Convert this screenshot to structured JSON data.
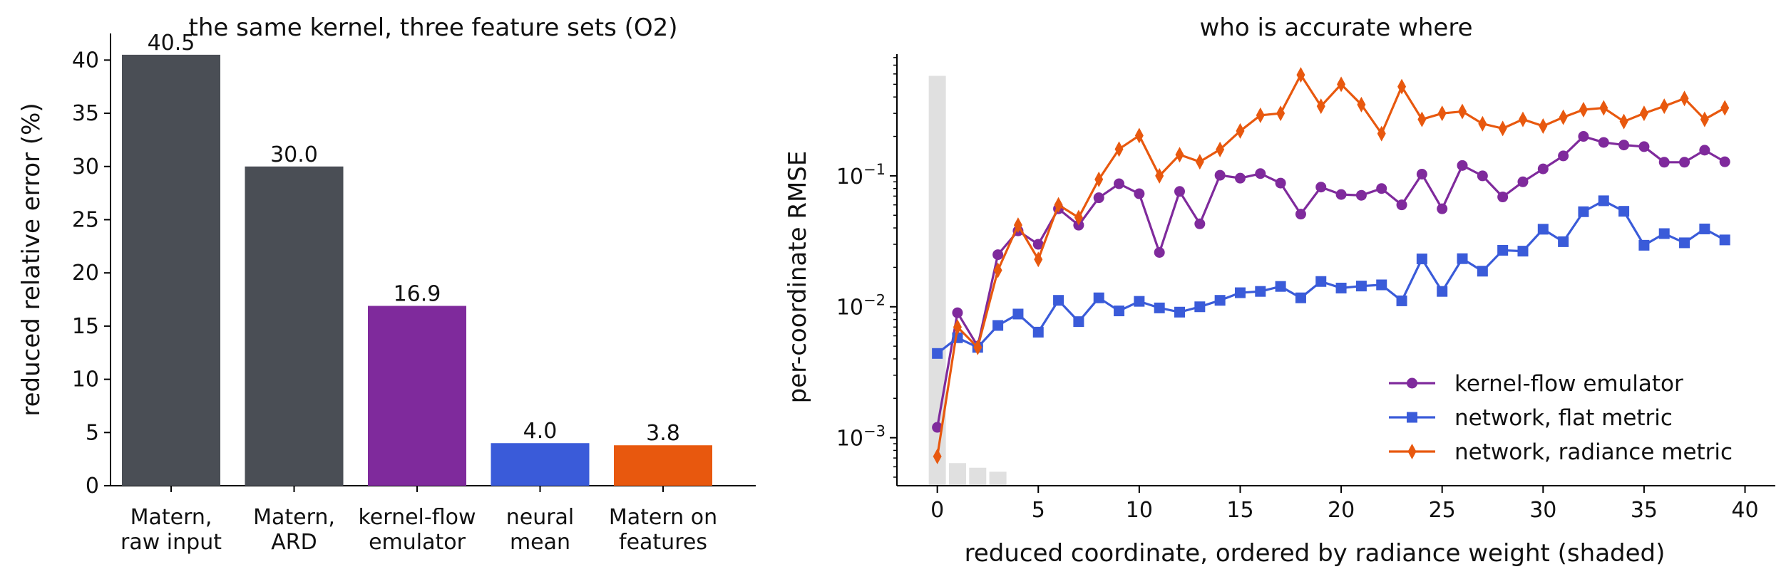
{
  "colors": {
    "dark_gray": "#4a4e55",
    "purple": "#7f2a9c",
    "blue": "#3a5bd9",
    "orange": "#e8580e",
    "shade": "#e0e0e0"
  },
  "chart_data": [
    {
      "type": "bar",
      "title": "the same kernel, three feature sets (O2)",
      "xlabel": "",
      "ylabel": "reduced relative error (%)",
      "ylim": [
        0,
        42.5
      ],
      "yticks": [
        0,
        5,
        10,
        15,
        20,
        25,
        30,
        35,
        40
      ],
      "categories": [
        [
          "Matern,",
          "raw input"
        ],
        [
          "Matern,",
          "ARD"
        ],
        [
          "kernel-flow",
          "emulator"
        ],
        [
          "neural",
          "mean"
        ],
        [
          "Matern on",
          "features"
        ]
      ],
      "values": [
        40.5,
        30.0,
        16.9,
        4.0,
        3.8
      ],
      "value_labels": [
        "40.5",
        "30.0",
        "16.9",
        "4.0",
        "3.8"
      ],
      "bar_colors": [
        "#4a4e55",
        "#4a4e55",
        "#7f2a9c",
        "#3a5bd9",
        "#e8580e"
      ]
    },
    {
      "type": "line",
      "title": "who is accurate where",
      "xlabel": "reduced coordinate, ordered by radiance weight (shaded)",
      "ylabel": "per-coordinate RMSE",
      "yscale": "log",
      "xlim": [
        -2,
        41.5
      ],
      "ylim": [
        0.00043,
        0.85
      ],
      "xticks": [
        0,
        5,
        10,
        15,
        20,
        25,
        30,
        35,
        40
      ],
      "yticks": [
        0.001,
        0.01,
        0.1
      ],
      "ytick_labels": [
        [
          "10",
          "−3"
        ],
        [
          "10",
          "−2"
        ],
        [
          "10",
          "−1"
        ]
      ],
      "legend_position": "lower-right",
      "x": [
        0,
        1,
        2,
        3,
        4,
        5,
        6,
        7,
        8,
        9,
        10,
        11,
        12,
        13,
        14,
        15,
        16,
        17,
        18,
        19,
        20,
        21,
        22,
        23,
        24,
        25,
        26,
        27,
        28,
        29,
        30,
        31,
        32,
        33,
        34,
        35,
        36,
        37,
        38,
        39
      ],
      "radiance_weight_shading": {
        "x": [
          0,
          1,
          2,
          3
        ],
        "values": [
          0.58,
          0.00064,
          0.00059,
          0.00055
        ]
      },
      "series": [
        {
          "name": "kernel-flow emulator",
          "color": "#7f2a9c",
          "marker": "circle",
          "values": [
            0.0012,
            0.009,
            0.005,
            0.025,
            0.038,
            0.03,
            0.056,
            0.042,
            0.068,
            0.087,
            0.073,
            0.026,
            0.076,
            0.043,
            0.101,
            0.096,
            0.104,
            0.088,
            0.051,
            0.082,
            0.072,
            0.071,
            0.08,
            0.06,
            0.103,
            0.056,
            0.12,
            0.1,
            0.069,
            0.09,
            0.113,
            0.142,
            0.2,
            0.18,
            0.172,
            0.167,
            0.127,
            0.127,
            0.157,
            0.128
          ]
        },
        {
          "name": "network, flat metric",
          "color": "#3a5bd9",
          "marker": "square",
          "values": [
            0.0044,
            0.0058,
            0.0049,
            0.0072,
            0.0088,
            0.0064,
            0.0112,
            0.0077,
            0.0117,
            0.0093,
            0.011,
            0.0098,
            0.0091,
            0.01,
            0.0112,
            0.0128,
            0.0131,
            0.0143,
            0.0117,
            0.0156,
            0.0139,
            0.0144,
            0.0147,
            0.0111,
            0.0232,
            0.0131,
            0.0233,
            0.0187,
            0.027,
            0.0266,
            0.0391,
            0.0314,
            0.0532,
            0.0645,
            0.0536,
            0.0295,
            0.0362,
            0.0308,
            0.0393,
            0.0324
          ]
        },
        {
          "name": "network, radiance metric",
          "color": "#e8580e",
          "marker": "thin_diamond",
          "values": [
            0.00072,
            0.007,
            0.0049,
            0.019,
            0.042,
            0.023,
            0.06,
            0.048,
            0.094,
            0.16,
            0.203,
            0.1,
            0.145,
            0.128,
            0.159,
            0.22,
            0.29,
            0.3,
            0.59,
            0.34,
            0.5,
            0.35,
            0.21,
            0.48,
            0.27,
            0.3,
            0.31,
            0.25,
            0.23,
            0.27,
            0.24,
            0.28,
            0.32,
            0.33,
            0.26,
            0.3,
            0.34,
            0.39,
            0.27,
            0.33
          ]
        }
      ]
    }
  ]
}
